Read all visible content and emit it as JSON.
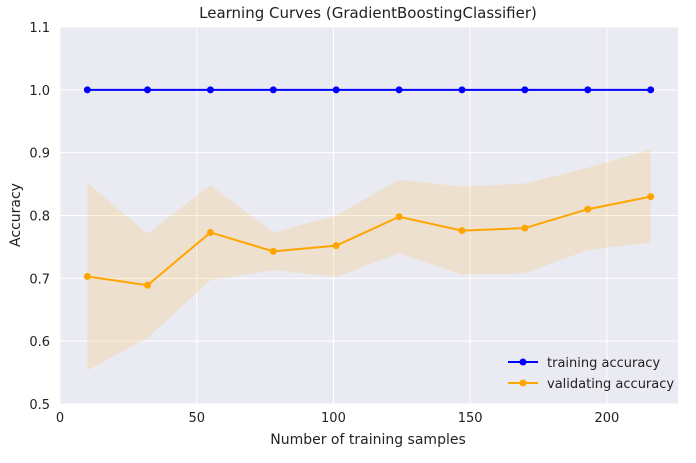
{
  "chart_data": {
    "type": "line",
    "title": "Learning Curves (GradientBoostingClassifier)",
    "xlabel": "Number of training samples",
    "ylabel": "Accuracy",
    "xlim": [
      0,
      226
    ],
    "ylim": [
      0.5,
      1.1
    ],
    "xticks": [
      0,
      50,
      100,
      150,
      200
    ],
    "yticks": [
      0.5,
      0.6,
      0.7,
      0.8,
      0.9,
      1.0,
      1.1
    ],
    "ytick_labels": [
      "0.5",
      "0.6",
      "0.7",
      "0.8",
      "0.9",
      "1.0",
      "1.1"
    ],
    "grid": true,
    "legend_position": "bottom-right",
    "x": [
      10,
      32,
      55,
      78,
      101,
      124,
      147,
      170,
      193,
      216
    ],
    "series": [
      {
        "name": "training accuracy",
        "color": "#0000ff",
        "values": [
          1,
          1,
          1,
          1,
          1,
          1,
          1,
          1,
          1,
          1
        ]
      },
      {
        "name": "validating accuracy",
        "color": "#ffa500",
        "values": [
          0.703,
          0.689,
          0.773,
          0.743,
          0.752,
          0.798,
          0.776,
          0.78,
          0.81,
          0.83
        ],
        "band_upper": [
          0.852,
          0.771,
          0.848,
          0.773,
          0.8,
          0.857,
          0.846,
          0.851,
          0.876,
          0.905
        ],
        "band_lower": [
          0.554,
          0.605,
          0.697,
          0.713,
          0.702,
          0.74,
          0.706,
          0.708,
          0.745,
          0.757
        ]
      }
    ]
  }
}
